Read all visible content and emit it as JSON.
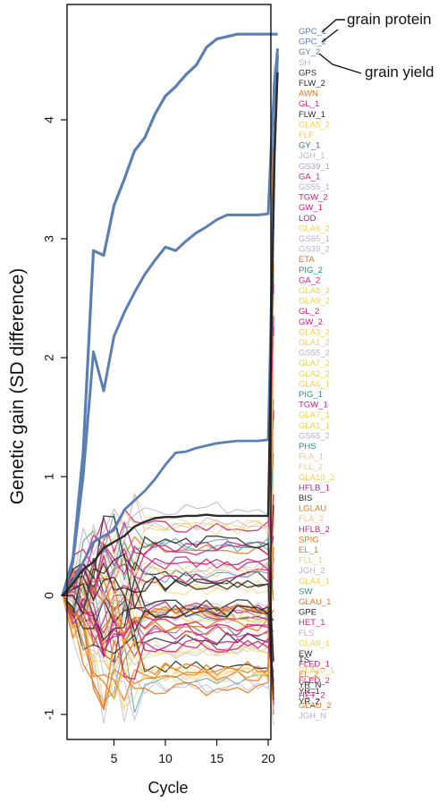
{
  "chart_data": {
    "type": "line",
    "xlabel": "Cycle",
    "ylabel": "Genetic gain (SD difference)",
    "xlim": [
      0,
      23
    ],
    "ylim": [
      -1.15,
      5.0
    ],
    "x_ticks": [
      5,
      10,
      15,
      20
    ],
    "y_ticks": [
      -1,
      0,
      1,
      2,
      3,
      4
    ],
    "x": [
      0,
      1,
      2,
      3,
      4,
      5,
      6,
      7,
      8,
      9,
      10,
      11,
      12,
      13,
      14,
      15,
      16,
      17,
      18,
      19,
      20,
      21,
      22,
      23
    ],
    "highlight_series": [
      {
        "name": "GPC_1",
        "color": "#5b7fb3",
        "width": 3.2,
        "values": [
          0,
          0.3,
          1.2,
          2.9,
          2.86,
          3.28,
          3.5,
          3.74,
          3.85,
          4.05,
          4.2,
          4.28,
          4.38,
          4.46,
          4.61,
          4.68,
          4.7,
          4.72,
          4.72,
          4.72,
          4.72,
          4.72,
          4.72,
          4.72
        ]
      },
      {
        "name": "GPC_2",
        "color": "#5b7fb3",
        "width": 3.0,
        "values": [
          0,
          0.28,
          1.0,
          2.05,
          1.72,
          2.18,
          2.38,
          2.55,
          2.7,
          2.82,
          2.93,
          2.9,
          2.98,
          3.05,
          3.1,
          3.16,
          3.2,
          3.2,
          3.2,
          3.2,
          3.21,
          3.8,
          4.3,
          4.6
        ]
      },
      {
        "name": "GY_2",
        "color": "#5b7fb3",
        "width": 2.8,
        "values": [
          0,
          0.12,
          0.28,
          0.45,
          0.5,
          0.55,
          0.72,
          0.8,
          0.88,
          0.98,
          1.1,
          1.2,
          1.21,
          1.24,
          1.26,
          1.28,
          1.29,
          1.3,
          1.3,
          1.3,
          1.31,
          2.5,
          3.7,
          4.55
        ]
      },
      {
        "name": "GPS",
        "color": "#2b2b2b",
        "width": 2.4,
        "values": [
          0,
          0.1,
          0.22,
          0.28,
          0.4,
          0.45,
          0.5,
          0.58,
          0.62,
          0.65,
          0.66,
          0.66,
          0.67,
          0.67,
          0.68,
          0.67,
          0.67,
          0.67,
          0.67,
          0.67,
          0.67,
          2.2,
          3.7,
          4.4
        ]
      }
    ],
    "right_labels": [
      {
        "name": "GPC_1",
        "value": 4.72,
        "color": "#5b7fb3"
      },
      {
        "name": "GPC_2",
        "value": 4.64,
        "color": "#5b7fb3"
      },
      {
        "name": "GY_2",
        "value": 4.55,
        "color": "#5b7fb3"
      },
      {
        "name": "SH",
        "value": 4.47,
        "color": "#b9b9b9"
      },
      {
        "name": "GPS",
        "value": 4.38,
        "color": "#2b2b2b"
      },
      {
        "name": "FLW_2",
        "value": 4.3,
        "color": "#2b2b2b"
      },
      {
        "name": "AWN",
        "value": 4.21,
        "color": "#e8791e"
      },
      {
        "name": "GL_1",
        "value": 4.12,
        "color": "#d6287c"
      },
      {
        "name": "FLW_1",
        "value": 4.03,
        "color": "#2b2b2b"
      },
      {
        "name": "GLA5_2",
        "value": 3.95,
        "color": "#f2cf55"
      },
      {
        "name": "FLF",
        "value": 3.86,
        "color": "#f2cf55"
      },
      {
        "name": "GY_1",
        "value": 3.77,
        "color": "#3f6ca6"
      },
      {
        "name": "JGH_1",
        "value": 3.68,
        "color": "#b7b0cf"
      },
      {
        "name": "GS39_1",
        "value": 3.6,
        "color": "#a8a0c8"
      },
      {
        "name": "GA_1",
        "value": 3.51,
        "color": "#c8247e"
      },
      {
        "name": "GS55_1",
        "value": 3.42,
        "color": "#b7b0cf"
      },
      {
        "name": "TGW_2",
        "value": 3.34,
        "color": "#c8247e"
      },
      {
        "name": "GW_1",
        "value": 3.25,
        "color": "#c8247e"
      },
      {
        "name": "LOD",
        "value": 3.16,
        "color": "#8a2c8f"
      },
      {
        "name": "GLA6_2",
        "value": 3.06,
        "color": "#f2cf55"
      },
      {
        "name": "GS65_1",
        "value": 2.97,
        "color": "#b7b0cf"
      },
      {
        "name": "GS39_2",
        "value": 2.88,
        "color": "#b7b0cf"
      },
      {
        "name": "ETA",
        "value": 2.8,
        "color": "#e8791e"
      },
      {
        "name": "PIG_2",
        "value": 2.71,
        "color": "#2a8f8a"
      },
      {
        "name": "GA_2",
        "value": 2.62,
        "color": "#c8247e"
      },
      {
        "name": "GLA8_2",
        "value": 2.53,
        "color": "#f2cf55"
      },
      {
        "name": "GLA9_2",
        "value": 2.44,
        "color": "#f2cf55"
      },
      {
        "name": "GL_2",
        "value": 2.35,
        "color": "#c8247e"
      },
      {
        "name": "GW_2",
        "value": 2.26,
        "color": "#c8247e"
      },
      {
        "name": "GLA3_2",
        "value": 2.18,
        "color": "#f2cf55"
      },
      {
        "name": "GLA1_2",
        "value": 2.09,
        "color": "#f2cf55"
      },
      {
        "name": "GS55_2",
        "value": 2.0,
        "color": "#b7b0cf"
      },
      {
        "name": "GLA7_2",
        "value": 1.91,
        "color": "#f2cf55"
      },
      {
        "name": "GLA2_2",
        "value": 1.82,
        "color": "#f2cf55"
      },
      {
        "name": "GLA6_1",
        "value": 1.74,
        "color": "#f2cf55"
      },
      {
        "name": "PIG_1",
        "value": 1.65,
        "color": "#2a8f8a"
      },
      {
        "name": "TGW_1",
        "value": 1.56,
        "color": "#c8247e"
      },
      {
        "name": "GLA7_1",
        "value": 1.47,
        "color": "#f2cf55"
      },
      {
        "name": "GLA1_1",
        "value": 1.38,
        "color": "#f2cf55"
      },
      {
        "name": "GS65_2",
        "value": 1.29,
        "color": "#b7b0cf"
      },
      {
        "name": "PHS",
        "value": 1.2,
        "color": "#2a8f8a"
      },
      {
        "name": "FLA_1",
        "value": 1.11,
        "color": "#f3c88a"
      },
      {
        "name": "FLL_2",
        "value": 1.02,
        "color": "#f3c88a"
      },
      {
        "name": "GLA10_2",
        "value": 0.94,
        "color": "#f2cf55"
      },
      {
        "name": "HFLB_1",
        "value": 0.85,
        "color": "#c8247e"
      },
      {
        "name": "BIS",
        "value": 0.76,
        "color": "#2b2b2b"
      },
      {
        "name": "LGLAU",
        "value": 0.67,
        "color": "#e8791e"
      },
      {
        "name": "FLA_2",
        "value": 0.58,
        "color": "#f3c88a"
      },
      {
        "name": "HFLB_2",
        "value": 0.5,
        "color": "#c8247e"
      },
      {
        "name": "SPIG",
        "value": 0.41,
        "color": "#e8791e"
      },
      {
        "name": "EL_1",
        "value": 0.32,
        "color": "#e8791e"
      },
      {
        "name": "FLL_1",
        "value": 0.23,
        "color": "#f3c88a"
      },
      {
        "name": "JGH_2",
        "value": 0.14,
        "color": "#b7b0cf"
      },
      {
        "name": "GLA4_1",
        "value": 0.05,
        "color": "#f2cf55"
      },
      {
        "name": "SW",
        "value": -0.04,
        "color": "#2a8f8a"
      },
      {
        "name": "GLAU_1",
        "value": -0.12,
        "color": "#e8791e"
      },
      {
        "name": "GPE",
        "value": -0.21,
        "color": "#2b2b2b"
      },
      {
        "name": "HET_1",
        "value": -0.3,
        "color": "#c8247e"
      },
      {
        "name": "FLS",
        "value": -0.39,
        "color": "#b7b0cf"
      },
      {
        "name": "GLA9_1",
        "value": -0.48,
        "color": "#f2cf55"
      },
      {
        "name": "EW",
        "value": -0.56,
        "color": "#2b2b2b"
      },
      {
        "name": "FLED_1",
        "value": -0.65,
        "color": "#c8247e"
      },
      {
        "name": "EL_2",
        "value": -0.74,
        "color": "#e8791e"
      },
      {
        "name": "YR_N",
        "value": -0.83,
        "color": "#2b2b2b"
      },
      {
        "name": "HET_2",
        "value": -0.92,
        "color": "#c8247e"
      },
      {
        "name": "GLAU_2",
        "value": -1.0,
        "color": "#e8791e"
      },
      {
        "name": "JGH_N",
        "value": -1.09,
        "color": "#b7b0cf"
      }
    ],
    "bottom_labels": [
      {
        "name": "TS",
        "value": -0.55,
        "color": "#2b2b2b"
      },
      {
        "name": "GLA10_1",
        "value": -0.63,
        "color": "#f2cf55"
      },
      {
        "name": "FLED_2",
        "value": -0.72,
        "color": "#c8247e"
      },
      {
        "name": "YR_1",
        "value": -0.8,
        "color": "#2b2b2b"
      },
      {
        "name": "YR_2",
        "value": -0.88,
        "color": "#2b2b2b"
      }
    ],
    "annotations": [
      "grain protein",
      "grain yield"
    ]
  }
}
